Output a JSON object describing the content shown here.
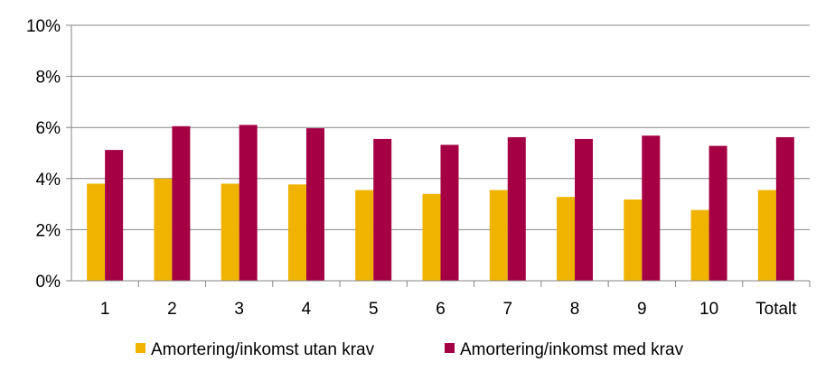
{
  "chart_data": {
    "type": "bar",
    "title": "",
    "xlabel": "",
    "ylabel": "",
    "categories": [
      "1",
      "2",
      "3",
      "4",
      "5",
      "6",
      "7",
      "8",
      "9",
      "10",
      "Totalt"
    ],
    "series": [
      {
        "name": "Amortering/inkomst utan krav",
        "color": "#F0B400",
        "values": [
          0.038,
          0.04,
          0.038,
          0.0377,
          0.0355,
          0.034,
          0.0355,
          0.0328,
          0.0318,
          0.0277,
          0.0355
        ]
      },
      {
        "name": "Amortering/inkomst med krav",
        "color": "#A50044",
        "values": [
          0.0512,
          0.0605,
          0.061,
          0.0597,
          0.0555,
          0.0532,
          0.0562,
          0.0555,
          0.0568,
          0.0528,
          0.0562
        ]
      }
    ],
    "ylim": [
      0,
      0.1
    ],
    "yticks": [
      0,
      0.02,
      0.04,
      0.06,
      0.08,
      0.1
    ],
    "ytick_labels": [
      "0%",
      "2%",
      "4%",
      "6%",
      "8%",
      "10%"
    ],
    "grid": "horizontal",
    "legend_position": "bottom"
  }
}
